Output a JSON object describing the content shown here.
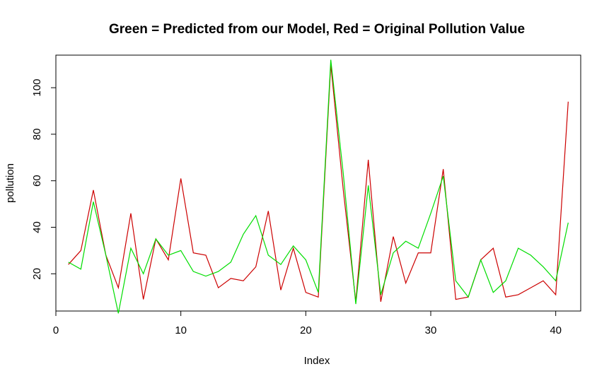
{
  "chart_data": {
    "type": "line",
    "title": "Green = Predicted from our Model, Red = Original Pollution Value",
    "xlabel": "Index",
    "ylabel": "pollution",
    "xlim": [
      0,
      42
    ],
    "ylim": [
      4,
      114
    ],
    "x_ticks": [
      0,
      10,
      20,
      30,
      40
    ],
    "y_ticks": [
      20,
      40,
      60,
      80,
      100
    ],
    "grid": false,
    "x": [
      1,
      2,
      3,
      4,
      5,
      6,
      7,
      8,
      9,
      10,
      11,
      12,
      13,
      14,
      15,
      16,
      17,
      18,
      19,
      20,
      21,
      22,
      23,
      24,
      25,
      26,
      27,
      28,
      29,
      30,
      31,
      32,
      33,
      34,
      35,
      36,
      37,
      38,
      39,
      40,
      41
    ],
    "series": [
      {
        "color": "#cc0000",
        "values": [
          24,
          30,
          56,
          28,
          14,
          46,
          9,
          35,
          26,
          61,
          29,
          28,
          14,
          18,
          17,
          23,
          47,
          13,
          31,
          12,
          10,
          110,
          56,
          8,
          69,
          8,
          36,
          16,
          29,
          29,
          65,
          9,
          10,
          26,
          31,
          10,
          11,
          14,
          17,
          11,
          94
        ]
      },
      {
        "color": "#00dd00",
        "values": [
          25,
          22,
          51,
          28,
          3,
          31,
          20,
          35,
          28,
          30,
          21,
          19,
          21,
          25,
          37,
          45,
          28,
          24,
          32,
          26,
          12,
          112,
          63,
          7,
          58,
          11,
          29,
          34,
          31,
          46,
          62,
          17,
          10,
          26,
          12,
          17,
          31,
          28,
          23,
          17,
          42
        ]
      }
    ]
  }
}
